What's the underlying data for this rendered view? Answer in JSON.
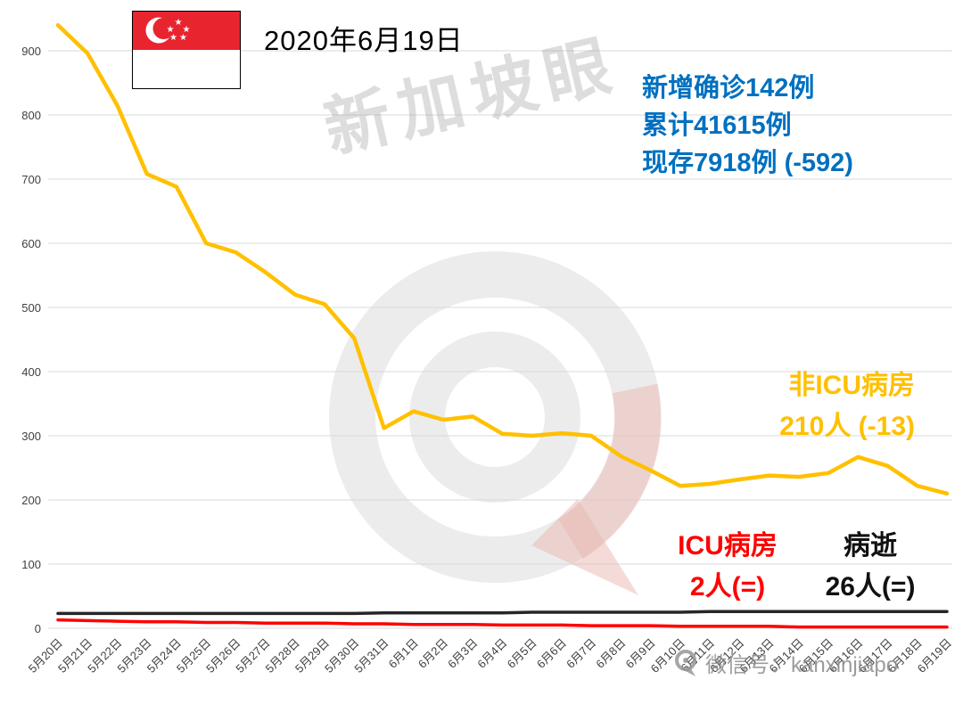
{
  "header": {
    "date": "2020年6月19日"
  },
  "annotations": {
    "color": "#0070C0",
    "lines": [
      "新增确诊142例",
      "累计41615例",
      "现存7918例 (-592)"
    ]
  },
  "series_labels": {
    "non_icu": {
      "name": "非ICU病房",
      "value": "210人 (-13)",
      "color": "#FFC000"
    },
    "icu": {
      "name": "ICU病房",
      "value": "2人(=)",
      "color": "#FF0000"
    },
    "deaths": {
      "name": "病逝",
      "value": "26人(=)",
      "color": "#111111"
    }
  },
  "watermark": {
    "brand_text": "新加坡眼",
    "wechat_text": "微信号：kanxinjiapo"
  },
  "icons": {
    "flag": "singapore-flag",
    "brand_logo": "xinjiapoyan-speech-bubble-logo"
  },
  "chart_data": {
    "type": "line",
    "title": "2020年6月19日",
    "xlabel": "",
    "ylabel": "",
    "ylim": [
      0,
      950
    ],
    "yticks": [
      0,
      100,
      200,
      300,
      400,
      500,
      600,
      700,
      800,
      900
    ],
    "grid": true,
    "legend_position": "inline-annotations",
    "categories": [
      "5月20日",
      "5月21日",
      "5月22日",
      "5月23日",
      "5月24日",
      "5月25日",
      "5月26日",
      "5月27日",
      "5月28日",
      "5月29日",
      "5月30日",
      "5月31日",
      "6月1日",
      "6月2日",
      "6月3日",
      "6月4日",
      "6月5日",
      "6月6日",
      "6月7日",
      "6月8日",
      "6月9日",
      "6月10日",
      "6月11日",
      "6月12日",
      "6月13日",
      "6月14日",
      "6月15日",
      "6月16日",
      "6月17日",
      "6月18日",
      "6月19日"
    ],
    "series": [
      {
        "name": "非ICU病房",
        "color": "#FFC000",
        "values": [
          940,
          896,
          815,
          708,
          688,
          600,
          586,
          555,
          520,
          505,
          452,
          312,
          338,
          325,
          330,
          303,
          300,
          304,
          300,
          268,
          246,
          222,
          225,
          232,
          238,
          236,
          242,
          267,
          253,
          222,
          210
        ]
      },
      {
        "name": "ICU病房",
        "color": "#FF0000",
        "values": [
          13,
          12,
          11,
          10,
          10,
          9,
          9,
          8,
          8,
          8,
          7,
          7,
          6,
          6,
          6,
          5,
          5,
          5,
          4,
          4,
          4,
          3,
          3,
          3,
          3,
          2,
          2,
          2,
          2,
          2,
          2
        ]
      },
      {
        "name": "病逝",
        "color": "#262626",
        "values": [
          23,
          23,
          23,
          23,
          23,
          23,
          23,
          23,
          23,
          23,
          23,
          24,
          24,
          24,
          24,
          24,
          25,
          25,
          25,
          25,
          25,
          25,
          26,
          26,
          26,
          26,
          26,
          26,
          26,
          26,
          26
        ]
      }
    ]
  }
}
